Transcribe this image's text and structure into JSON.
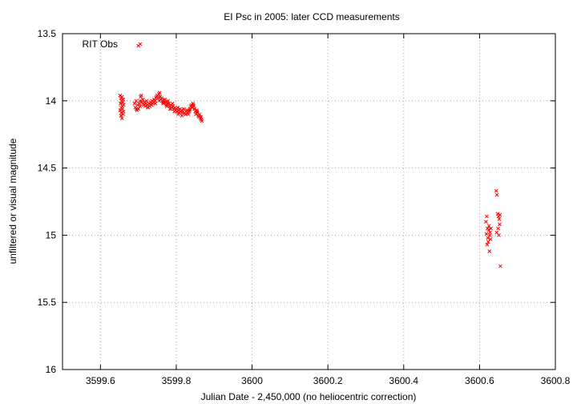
{
  "chart_data": {
    "type": "scatter",
    "title": "EI Psc in 2005: later CCD measurements",
    "xlabel": "Julian Date - 2,450,000 (no heliocentric correction)",
    "ylabel": "unfiltered or visual magnitude",
    "xlim": [
      3599.5,
      3600.8
    ],
    "ylim": [
      13.5,
      16
    ],
    "y_inverted": true,
    "grid": true,
    "legend_position": "top-left",
    "xticks": [
      "3599.6",
      "3599.8",
      "3600",
      "3600.2",
      "3600.4",
      "3600.6",
      "3600.8"
    ],
    "yticks": [
      "13.5",
      "14",
      "14.5",
      "15",
      "15.5",
      "16"
    ],
    "series": [
      {
        "name": "RIT Obs",
        "color": "#ff0000",
        "marker": "x",
        "x": [
          3599.652,
          3599.653,
          3599.654,
          3599.655,
          3599.656,
          3599.657,
          3599.658,
          3599.659,
          3599.66,
          3599.661,
          3599.652,
          3599.655,
          3599.658,
          3599.661,
          3599.654,
          3599.657,
          3599.66,
          3599.69,
          3599.692,
          3599.694,
          3599.696,
          3599.698,
          3599.7,
          3599.702,
          3599.704,
          3599.706,
          3599.708,
          3599.71,
          3599.712,
          3599.714,
          3599.716,
          3599.718,
          3599.72,
          3599.722,
          3599.724,
          3599.726,
          3599.728,
          3599.73,
          3599.732,
          3599.734,
          3599.736,
          3599.738,
          3599.74,
          3599.742,
          3599.744,
          3599.746,
          3599.748,
          3599.75,
          3599.752,
          3599.754,
          3599.756,
          3599.758,
          3599.76,
          3599.762,
          3599.764,
          3599.766,
          3599.768,
          3599.77,
          3599.772,
          3599.774,
          3599.776,
          3599.778,
          3599.78,
          3599.782,
          3599.784,
          3599.786,
          3599.788,
          3599.79,
          3599.792,
          3599.794,
          3599.796,
          3599.798,
          3599.8,
          3599.802,
          3599.804,
          3599.806,
          3599.808,
          3599.81,
          3599.812,
          3599.814,
          3599.816,
          3599.818,
          3599.82,
          3599.822,
          3599.824,
          3599.826,
          3599.828,
          3599.83,
          3599.832,
          3599.834,
          3599.836,
          3599.838,
          3599.84,
          3599.842,
          3599.844,
          3599.846,
          3599.848,
          3599.85,
          3599.852,
          3599.854,
          3599.856,
          3599.858,
          3599.86,
          3599.862,
          3599.864,
          3599.866,
          3599.868,
          3599.695,
          3599.705,
          3599.715,
          3599.725,
          3599.735,
          3599.745,
          3599.755,
          3599.765,
          3599.775,
          3599.785,
          3599.795,
          3599.805,
          3599.815,
          3599.825,
          3599.835,
          3599.845,
          3599.855,
          3599.865,
          3599.7,
          3600.617,
          3600.619,
          3600.621,
          3600.622,
          3600.624,
          3600.625,
          3600.627,
          3600.628,
          3600.63,
          3600.618,
          3600.623,
          3600.626,
          3600.629,
          3600.62,
          3600.644,
          3600.646,
          3600.648,
          3600.65,
          3600.652,
          3600.654,
          3600.645,
          3600.649,
          3600.653,
          3600.651,
          3600.655
        ],
        "y": [
          13.96,
          14.02,
          13.98,
          14.05,
          14.0,
          13.97,
          14.04,
          14.01,
          13.99,
          14.03,
          14.07,
          14.09,
          14.06,
          14.08,
          14.11,
          14.13,
          14.1,
          14.02,
          14.05,
          14.0,
          14.07,
          14.03,
          14.06,
          14.02,
          14.0,
          13.97,
          13.96,
          14.01,
          13.99,
          14.03,
          14.01,
          14.04,
          14.02,
          14.0,
          14.03,
          14.05,
          14.02,
          14.04,
          14.01,
          14.03,
          14.0,
          14.02,
          14.01,
          13.99,
          14.0,
          13.98,
          13.97,
          13.96,
          13.98,
          13.95,
          13.94,
          13.97,
          13.99,
          13.98,
          14.0,
          14.02,
          14.01,
          13.99,
          14.01,
          14.03,
          14.02,
          14.0,
          14.02,
          14.04,
          14.06,
          14.03,
          14.05,
          14.02,
          14.04,
          14.06,
          14.05,
          14.07,
          14.06,
          14.08,
          14.05,
          14.07,
          14.09,
          14.06,
          14.08,
          14.07,
          14.09,
          14.08,
          14.06,
          14.09,
          14.1,
          14.08,
          14.07,
          14.09,
          14.1,
          14.08,
          14.06,
          14.04,
          14.03,
          14.05,
          14.02,
          14.04,
          14.06,
          14.08,
          14.1,
          14.07,
          14.09,
          14.11,
          14.12,
          14.1,
          14.13,
          14.14,
          14.15,
          14.06,
          14.04,
          14.03,
          14.05,
          14.03,
          14.02,
          14.0,
          14.01,
          14.04,
          14.06,
          14.08,
          14.1,
          14.11,
          14.1,
          14.07,
          14.03,
          14.08,
          14.12,
          13.59,
          14.9,
          14.86,
          14.95,
          15.02,
          14.96,
          14.93,
          15.0,
          14.98,
          14.95,
          14.99,
          15.05,
          15.12,
          15.03,
          15.07,
          14.67,
          14.7,
          14.84,
          14.86,
          14.88,
          14.85,
          14.98,
          14.95,
          14.92,
          15.0,
          15.23
        ]
      }
    ]
  }
}
